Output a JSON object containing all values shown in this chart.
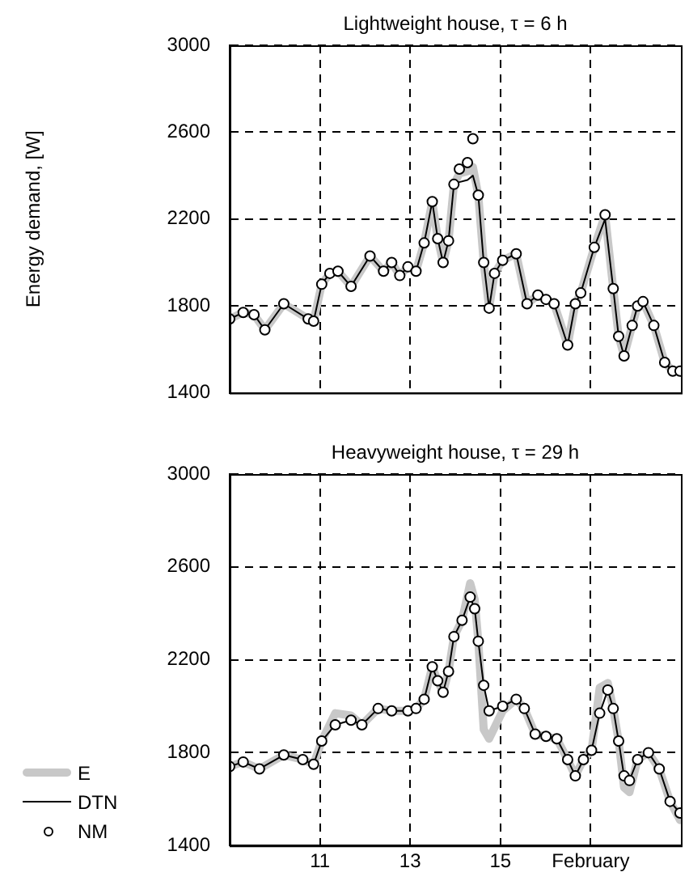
{
  "chart_data": [
    {
      "type": "line",
      "title": "Lightweight house, τ = 6 h",
      "ylabel": "Energy demand, [W]",
      "xlim": [
        9,
        19
      ],
      "xticks": [
        11,
        13,
        15,
        17
      ],
      "ylim": [
        1400,
        3000
      ],
      "yticks": [
        1400,
        1800,
        2200,
        2600,
        3000
      ],
      "grid": true,
      "tick_labels": "y",
      "series": [
        {
          "marker": "none",
          "color": "#c8c8c8",
          "x": [
            9.0,
            9.3,
            9.54,
            9.78,
            10.2,
            10.74,
            10.86,
            11.04,
            11.22,
            11.4,
            11.69,
            12.11,
            12.41,
            12.59,
            12.77,
            12.95,
            13.13,
            13.31,
            13.49,
            13.61,
            13.73,
            13.85,
            13.97,
            14.09,
            14.27,
            14.39,
            14.51,
            14.63,
            14.75,
            14.87,
            15.05,
            15.35,
            15.59,
            15.83,
            16.01,
            16.19,
            16.49,
            16.66,
            16.78,
            17.08,
            17.32,
            17.5,
            17.62,
            17.74,
            17.92,
            18.04,
            18.16,
            18.4,
            18.64,
            18.82,
            18.98
          ],
          "values": [
            1740,
            1770,
            1760,
            1690,
            1810,
            1740,
            1730,
            1900,
            1950,
            1960,
            1890,
            2030,
            1960,
            2000,
            1940,
            1980,
            1960,
            2090,
            2280,
            2110,
            2000,
            2100,
            2360,
            2410,
            2420,
            2440,
            2310,
            2000,
            1790,
            1950,
            2010,
            2040,
            1810,
            1850,
            1830,
            1810,
            1620,
            1810,
            1860,
            2070,
            2220,
            1880,
            1660,
            1570,
            1710,
            1800,
            1820,
            1710,
            1540,
            1500,
            1500
          ]
        },
        {
          "marker": "none",
          "color": "#000000",
          "x": [
            9.0,
            9.3,
            9.54,
            9.78,
            10.2,
            10.74,
            10.86,
            11.04,
            11.22,
            11.4,
            11.69,
            12.11,
            12.41,
            12.59,
            12.77,
            12.95,
            13.13,
            13.31,
            13.49,
            13.61,
            13.73,
            13.85,
            13.97,
            14.09,
            14.27,
            14.39,
            14.51,
            14.63,
            14.75,
            14.87,
            15.05,
            15.35,
            15.59,
            15.83,
            16.01,
            16.19,
            16.49,
            16.66,
            16.78,
            17.08,
            17.32,
            17.5,
            17.62,
            17.74,
            17.92,
            18.04,
            18.16,
            18.4,
            18.64,
            18.82,
            18.98
          ],
          "values": [
            1740,
            1770,
            1760,
            1690,
            1810,
            1740,
            1730,
            1900,
            1950,
            1960,
            1890,
            2030,
            1960,
            2000,
            1940,
            1980,
            1960,
            2090,
            2280,
            2110,
            2000,
            2100,
            2360,
            2370,
            2380,
            2400,
            2310,
            2000,
            1790,
            1950,
            2010,
            2040,
            1810,
            1850,
            1830,
            1810,
            1620,
            1810,
            1860,
            2070,
            2200,
            1880,
            1660,
            1570,
            1710,
            1800,
            1820,
            1710,
            1540,
            1500,
            1500
          ]
        },
        {
          "type": "scatter",
          "marker": "circle",
          "color": "#000000",
          "x": [
            9.0,
            9.3,
            9.54,
            9.78,
            10.2,
            10.74,
            10.86,
            11.04,
            11.22,
            11.4,
            11.69,
            12.11,
            12.41,
            12.59,
            12.77,
            12.95,
            13.13,
            13.31,
            13.49,
            13.61,
            13.73,
            13.85,
            13.97,
            14.09,
            14.27,
            14.39,
            14.51,
            14.63,
            14.75,
            14.87,
            15.05,
            15.35,
            15.59,
            15.83,
            16.01,
            16.19,
            16.49,
            16.66,
            16.78,
            17.08,
            17.32,
            17.5,
            17.62,
            17.74,
            17.92,
            18.04,
            18.16,
            18.4,
            18.64,
            18.82,
            18.98
          ],
          "values": [
            1740,
            1770,
            1760,
            1690,
            1810,
            1740,
            1730,
            1900,
            1950,
            1960,
            1890,
            2030,
            1960,
            2000,
            1940,
            1980,
            1960,
            2090,
            2280,
            2110,
            2000,
            2100,
            2360,
            2430,
            2460,
            2570,
            2310,
            2000,
            1790,
            1950,
            2010,
            2040,
            1810,
            1850,
            1830,
            1810,
            1620,
            1810,
            1860,
            2070,
            2220,
            1880,
            1660,
            1570,
            1710,
            1800,
            1820,
            1710,
            1540,
            1500,
            1500
          ]
        }
      ]
    },
    {
      "type": "line",
      "title": "Heavyweight house, τ = 29 h",
      "xlim": [
        9,
        19
      ],
      "xticks": [
        11,
        13,
        15,
        {
          "value": 17,
          "label": "February"
        }
      ],
      "ylim": [
        1400,
        3000
      ],
      "yticks": [
        1400,
        1800,
        2200,
        2600,
        3000
      ],
      "grid": true,
      "legend": "bottom left",
      "series": [
        {
          "name": "E",
          "marker": "none",
          "color": "#c8c8c8",
          "x": [
            9.0,
            9.3,
            9.66,
            10.2,
            10.62,
            10.86,
            11.04,
            11.34,
            11.69,
            11.93,
            12.29,
            12.59,
            12.95,
            13.13,
            13.31,
            13.49,
            13.61,
            13.73,
            13.85,
            13.97,
            14.15,
            14.33,
            14.43,
            14.51,
            14.63,
            14.75,
            15.05,
            15.35,
            15.53,
            15.77,
            16.01,
            16.25,
            16.49,
            16.66,
            16.84,
            17.02,
            17.2,
            17.38,
            17.5,
            17.62,
            17.74,
            17.86,
            18.04,
            18.28,
            18.52,
            18.76,
            18.98
          ],
          "values": [
            1740,
            1760,
            1730,
            1790,
            1770,
            1750,
            1850,
            1970,
            1960,
            1920,
            1990,
            1980,
            1980,
            1990,
            2030,
            2170,
            2110,
            2060,
            2150,
            2300,
            2370,
            2530,
            2460,
            2280,
            1900,
            1860,
            1980,
            2030,
            1990,
            1880,
            1870,
            1860,
            1770,
            1700,
            1770,
            1810,
            2080,
            2100,
            1990,
            1850,
            1650,
            1630,
            1770,
            1800,
            1730,
            1590,
            1510
          ]
        },
        {
          "name": "DTN",
          "marker": "none",
          "color": "#000000",
          "x": [
            9.0,
            9.3,
            9.66,
            10.2,
            10.62,
            10.86,
            11.04,
            11.34,
            11.69,
            11.93,
            12.29,
            12.59,
            12.95,
            13.13,
            13.31,
            13.49,
            13.61,
            13.73,
            13.85,
            13.97,
            14.15,
            14.33,
            14.43,
            14.51,
            14.63,
            14.75,
            15.05,
            15.35,
            15.53,
            15.77,
            16.01,
            16.25,
            16.49,
            16.66,
            16.84,
            17.02,
            17.2,
            17.38,
            17.5,
            17.62,
            17.74,
            17.86,
            18.04,
            18.28,
            18.52,
            18.76,
            18.98
          ],
          "values": [
            1740,
            1760,
            1730,
            1790,
            1770,
            1750,
            1850,
            1920,
            1940,
            1920,
            1990,
            1980,
            1980,
            1990,
            2030,
            2170,
            2110,
            2060,
            2150,
            2300,
            2370,
            2470,
            2420,
            2280,
            2090,
            1980,
            2000,
            2030,
            1990,
            1880,
            1870,
            1860,
            1770,
            1700,
            1770,
            1810,
            1970,
            2070,
            1990,
            1850,
            1700,
            1680,
            1770,
            1800,
            1730,
            1590,
            1540
          ]
        },
        {
          "name": "NM",
          "type": "scatter",
          "marker": "circle",
          "color": "#000000",
          "x": [
            9.0,
            9.3,
            9.66,
            10.2,
            10.62,
            10.86,
            11.04,
            11.34,
            11.69,
            11.93,
            12.29,
            12.59,
            12.95,
            13.13,
            13.31,
            13.49,
            13.61,
            13.73,
            13.85,
            13.97,
            14.15,
            14.33,
            14.43,
            14.51,
            14.63,
            14.75,
            15.05,
            15.35,
            15.53,
            15.77,
            16.01,
            16.25,
            16.49,
            16.66,
            16.84,
            17.02,
            17.2,
            17.38,
            17.5,
            17.62,
            17.74,
            17.86,
            18.04,
            18.28,
            18.52,
            18.76,
            18.98
          ],
          "values": [
            1740,
            1760,
            1730,
            1790,
            1770,
            1750,
            1850,
            1920,
            1940,
            1920,
            1990,
            1980,
            1980,
            1990,
            2030,
            2170,
            2110,
            2060,
            2150,
            2300,
            2370,
            2470,
            2420,
            2280,
            2090,
            1980,
            2000,
            2030,
            1990,
            1880,
            1870,
            1860,
            1770,
            1700,
            1770,
            1810,
            1970,
            2070,
            1990,
            1850,
            1700,
            1680,
            1770,
            1800,
            1730,
            1590,
            1540
          ]
        }
      ]
    }
  ]
}
